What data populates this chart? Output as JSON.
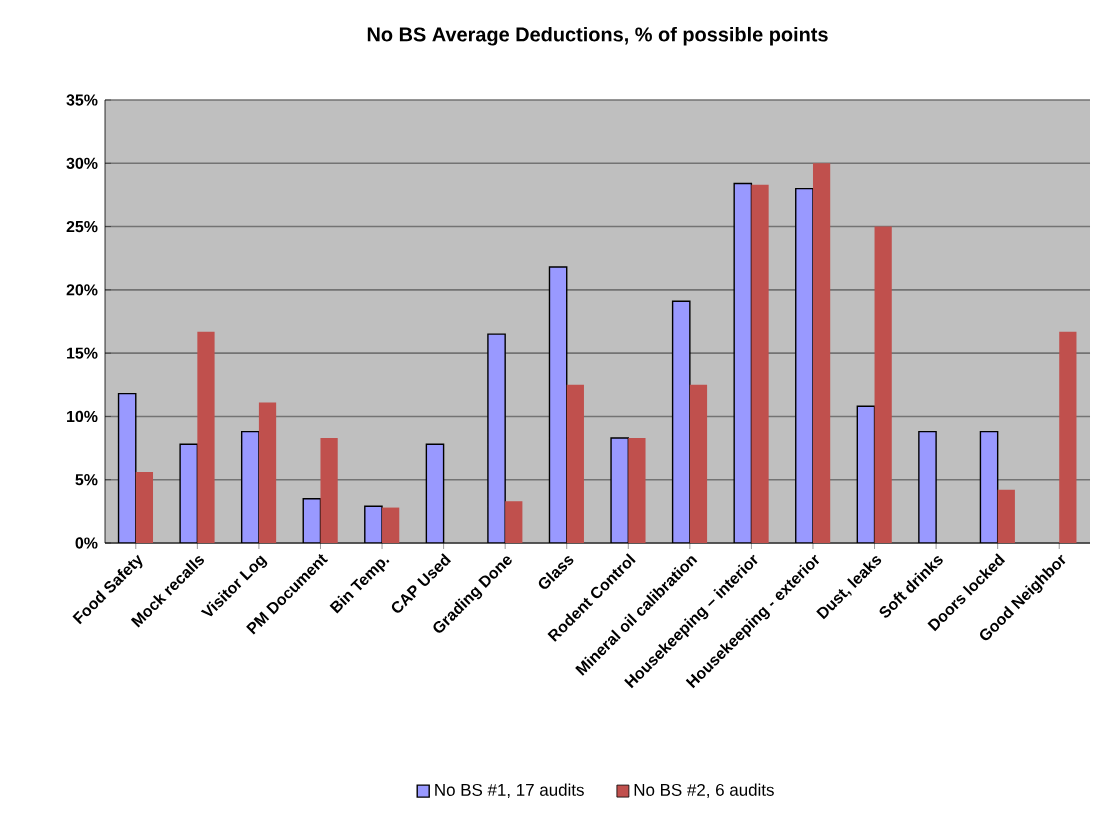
{
  "chart_data": {
    "type": "bar",
    "title": "No BS Average Deductions, % of possible points",
    "categories": [
      "Food Safety",
      "Mock recalls",
      "Visitor Log",
      "PM Document",
      "Bin Temp.",
      "CAP Used",
      "Grading Done",
      "Glass",
      "Rodent Control",
      "Mineral oil calibration",
      "Housekeeping – interior",
      "Housekeeping - exterior",
      "Dust, leaks",
      "Soft drinks",
      "Doors locked",
      "Good Neighbor"
    ],
    "series": [
      {
        "name": "No BS #1, 17 audits",
        "color": "#9999ff",
        "values": [
          11.8,
          7.8,
          8.8,
          3.5,
          2.9,
          7.8,
          16.5,
          21.8,
          8.3,
          19.1,
          28.4,
          28.0,
          10.8,
          8.8,
          8.8,
          null
        ]
      },
      {
        "name": "No BS #2, 6 audits",
        "color": "#c0504d",
        "values": [
          5.6,
          16.7,
          11.1,
          8.3,
          2.8,
          null,
          3.3,
          12.5,
          8.3,
          12.5,
          28.3,
          30.0,
          25.0,
          null,
          4.2,
          16.7
        ]
      }
    ],
    "ylim": [
      0,
      35
    ],
    "yticks": [
      {
        "value": 0,
        "label": "0%"
      },
      {
        "value": 5,
        "label": "5%"
      },
      {
        "value": 10,
        "label": "10%"
      },
      {
        "value": 15,
        "label": "15%"
      },
      {
        "value": 20,
        "label": "20%"
      },
      {
        "value": 25,
        "label": "25%"
      },
      {
        "value": 30,
        "label": "30%"
      },
      {
        "value": 35,
        "label": "35%"
      }
    ],
    "grid": "y",
    "legend": "bottom"
  }
}
